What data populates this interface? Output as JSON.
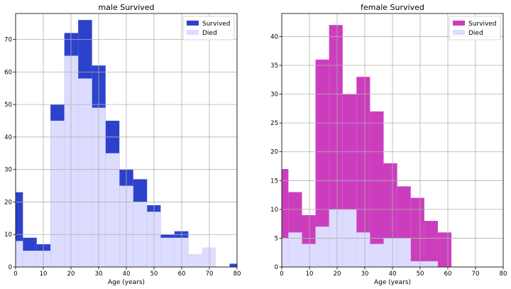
{
  "chart_data": [
    {
      "type": "bar",
      "subtype": "histogram",
      "title": "male Survived",
      "xlabel": "Age (years)",
      "ylabel": "",
      "xlim": [
        0,
        80
      ],
      "ylim": [
        0,
        78
      ],
      "xticks": [
        0,
        10,
        20,
        30,
        40,
        50,
        60,
        70,
        80
      ],
      "yticks": [
        0,
        10,
        20,
        30,
        40,
        50,
        60,
        70
      ],
      "grid": true,
      "legend": "top-right",
      "bin_edges": [
        0,
        2.65,
        7.63,
        12.6,
        17.6,
        22.6,
        27.6,
        32.5,
        37.5,
        42.5,
        47.5,
        52.4,
        57.4,
        62.4,
        67.4,
        72.3,
        77.3,
        80
      ],
      "series": [
        {
          "name": "Survived",
          "color": "#2d42cc",
          "values": [
            23,
            9,
            7,
            50,
            72,
            76,
            62,
            45,
            30,
            27,
            19,
            10,
            11,
            0,
            0,
            0,
            1
          ]
        },
        {
          "name": "Died",
          "color": "#dcdcff",
          "values": [
            8,
            5,
            5,
            45,
            65,
            58,
            49,
            35,
            25,
            20,
            17,
            9,
            9,
            4,
            6,
            0,
            0
          ]
        }
      ]
    },
    {
      "type": "bar",
      "subtype": "histogram",
      "title": "female Survived",
      "xlabel": "Age (years)",
      "ylabel": "",
      "xlim": [
        0,
        80
      ],
      "ylim": [
        0,
        44
      ],
      "xticks": [
        0,
        10,
        20,
        30,
        40,
        50,
        60,
        70,
        80
      ],
      "yticks": [
        0,
        5,
        10,
        15,
        20,
        25,
        30,
        35,
        40
      ],
      "grid": true,
      "legend": "top-right",
      "bin_edges": [
        0,
        2.4,
        7.3,
        12.2,
        17.1,
        22.0,
        27.0,
        31.9,
        36.8,
        41.7,
        46.6,
        51.5,
        56.4,
        61.3,
        66.2,
        71.1,
        76.0,
        80
      ],
      "series": [
        {
          "name": "Survived",
          "color": "#cc3dbe",
          "values": [
            17,
            13,
            9,
            36,
            42,
            30,
            33,
            27,
            18,
            14,
            12,
            8,
            6,
            0,
            0,
            0,
            0
          ]
        },
        {
          "name": "Died",
          "color": "#dcdcff",
          "values": [
            5,
            6,
            4,
            7,
            10,
            10,
            6,
            4,
            5,
            5,
            1,
            1,
            0,
            0,
            0,
            0,
            0
          ]
        }
      ]
    }
  ]
}
